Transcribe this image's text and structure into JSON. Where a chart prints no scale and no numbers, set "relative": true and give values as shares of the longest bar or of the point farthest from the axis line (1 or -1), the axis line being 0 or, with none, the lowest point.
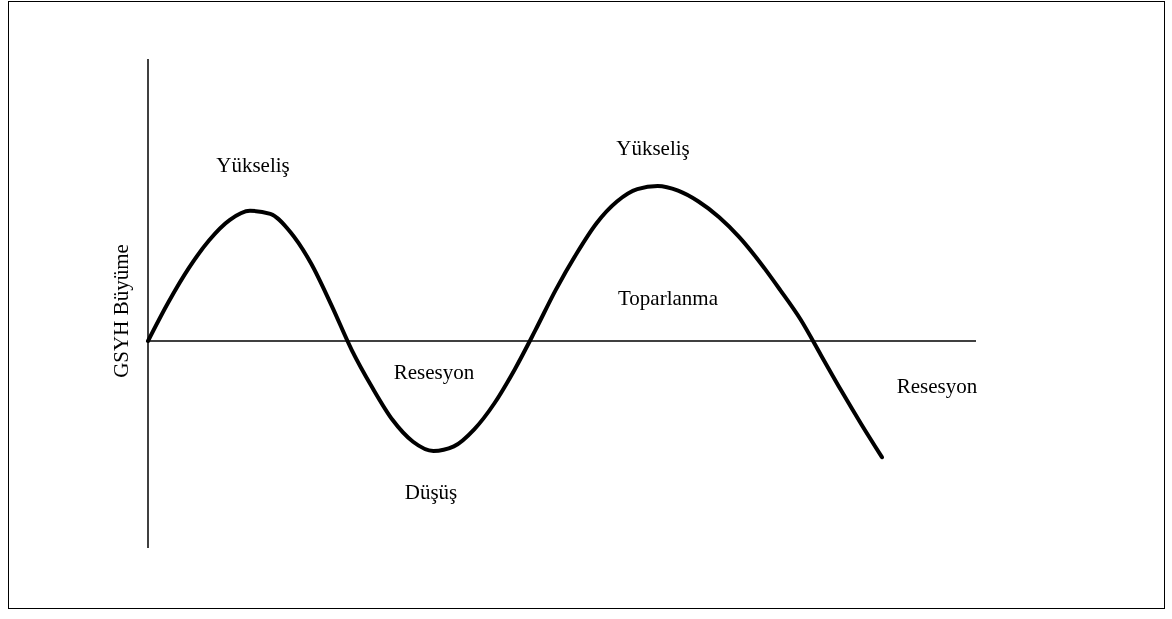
{
  "chart_data": {
    "type": "line",
    "relative": true,
    "ylabel": "GSYH Büyüme",
    "categories": [
      null,
      null,
      null,
      null,
      null,
      null,
      null,
      null,
      null,
      null,
      null,
      null,
      null,
      null,
      null,
      null,
      null,
      null,
      null,
      null,
      null,
      null,
      null,
      null,
      null,
      null,
      null,
      null,
      null,
      null,
      null,
      null,
      null,
      null,
      null,
      null,
      null
    ],
    "series": [
      {
        "color": "#000000",
        "values": [
          0,
          0.25,
          0.47,
          0.65,
          0.78,
          0.84,
          0.82,
          0.7,
          0.5,
          0.23,
          -0.06,
          -0.3,
          -0.51,
          -0.65,
          -0.71,
          -0.68,
          -0.57,
          -0.4,
          -0.18,
          0.07,
          0.33,
          0.56,
          0.76,
          0.9,
          0.98,
          1,
          0.97,
          0.9,
          0.8,
          0.67,
          0.51,
          0.33,
          0.14,
          -0.09,
          -0.32,
          -0.54,
          -0.75
        ]
      }
    ],
    "annotations": [
      "Yükseliş",
      "Yükseliş",
      "Toparlanma",
      "Resesyon",
      "Resesyon",
      "Düşüş"
    ],
    "marker": "none",
    "line_style": "solid"
  }
}
